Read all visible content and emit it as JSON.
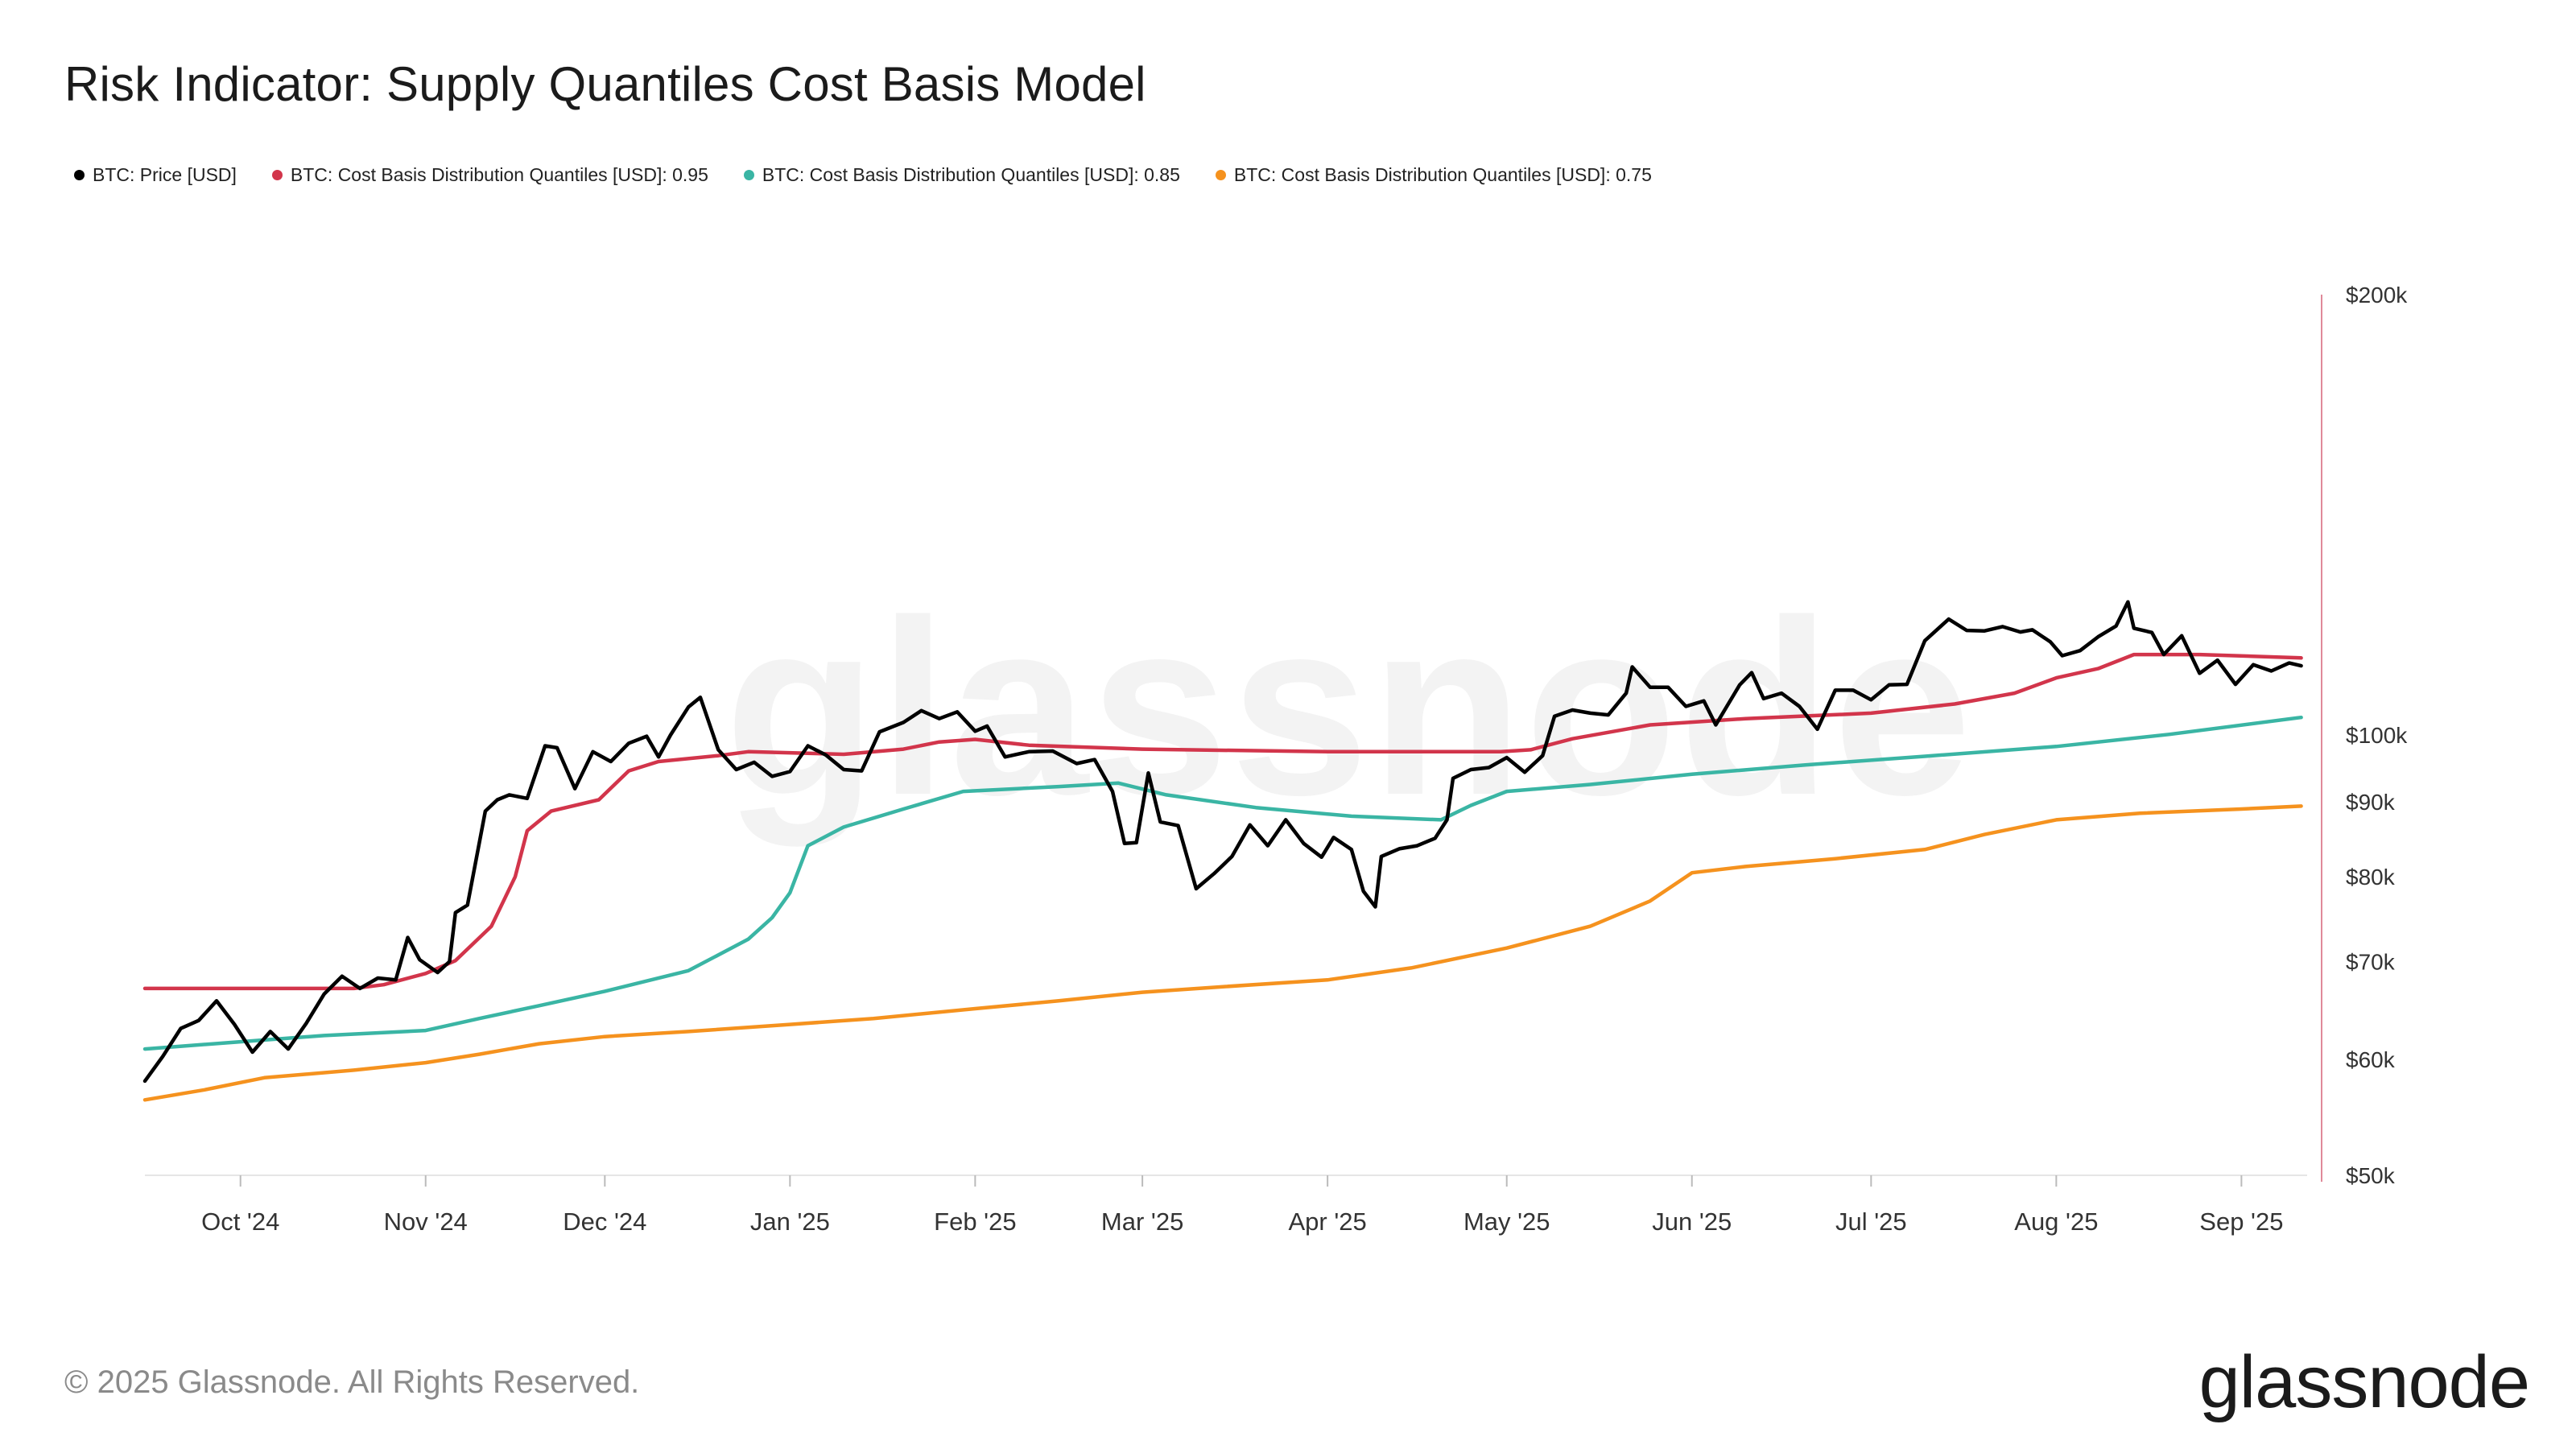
{
  "title": "Risk Indicator: Supply Quantiles Cost Basis Model",
  "footer": "© 2025 Glassnode. All Rights Reserved.",
  "brand": "glassnode",
  "watermark": "glassnode",
  "legend": [
    {
      "label": "BTC: Price [USD]",
      "color": "#000000"
    },
    {
      "label": "BTC: Cost Basis Distribution Quantiles [USD]: 0.95",
      "color": "#d2354b"
    },
    {
      "label": "BTC: Cost Basis Distribution Quantiles [USD]: 0.85",
      "color": "#3ab5a4"
    },
    {
      "label": "BTC: Cost Basis Distribution Quantiles [USD]: 0.75",
      "color": "#f5921e"
    }
  ],
  "chart_data": {
    "type": "line",
    "title": "Risk Indicator: Supply Quantiles Cost Basis Model",
    "y_scale": "log",
    "ylim": [
      50000,
      200000
    ],
    "y_ticks": [
      {
        "value": 200000,
        "label": "$200k"
      },
      {
        "value": 100000,
        "label": "$100k"
      },
      {
        "value": 90000,
        "label": "$90k"
      },
      {
        "value": 80000,
        "label": "$80k"
      },
      {
        "value": 70000,
        "label": "$70k"
      },
      {
        "value": 60000,
        "label": "$60k"
      },
      {
        "value": 50000,
        "label": "$50k"
      }
    ],
    "x_range": [
      "2024-09-15",
      "2025-09-12"
    ],
    "x_ticks": [
      {
        "date": "2024-10-01",
        "label": "Oct '24"
      },
      {
        "date": "2024-11-01",
        "label": "Nov '24"
      },
      {
        "date": "2024-12-01",
        "label": "Dec '24"
      },
      {
        "date": "2025-01-01",
        "label": "Jan '25"
      },
      {
        "date": "2025-02-01",
        "label": "Feb '25"
      },
      {
        "date": "2025-03-01",
        "label": "Mar '25"
      },
      {
        "date": "2025-04-01",
        "label": "Apr '25"
      },
      {
        "date": "2025-05-01",
        "label": "May '25"
      },
      {
        "date": "2025-06-01",
        "label": "Jun '25"
      },
      {
        "date": "2025-07-01",
        "label": "Jul '25"
      },
      {
        "date": "2025-08-01",
        "label": "Aug '25"
      },
      {
        "date": "2025-09-01",
        "label": "Sep '25"
      }
    ],
    "series": [
      {
        "name": "BTC: Price [USD]",
        "color": "#000000",
        "points": [
          [
            "2024-09-15",
            58000
          ],
          [
            "2024-09-18",
            60300
          ],
          [
            "2024-09-21",
            63000
          ],
          [
            "2024-09-24",
            63800
          ],
          [
            "2024-09-27",
            65800
          ],
          [
            "2024-09-30",
            63400
          ],
          [
            "2024-10-03",
            60700
          ],
          [
            "2024-10-06",
            62700
          ],
          [
            "2024-10-09",
            61000
          ],
          [
            "2024-10-12",
            63500
          ],
          [
            "2024-10-15",
            66500
          ],
          [
            "2024-10-18",
            68400
          ],
          [
            "2024-10-21",
            67100
          ],
          [
            "2024-10-24",
            68200
          ],
          [
            "2024-10-27",
            68000
          ],
          [
            "2024-10-29",
            72700
          ],
          [
            "2024-10-31",
            70200
          ],
          [
            "2024-11-03",
            68800
          ],
          [
            "2024-11-05",
            70000
          ],
          [
            "2024-11-06",
            75600
          ],
          [
            "2024-11-08",
            76500
          ],
          [
            "2024-11-11",
            88700
          ],
          [
            "2024-11-13",
            90300
          ],
          [
            "2024-11-15",
            91000
          ],
          [
            "2024-11-18",
            90500
          ],
          [
            "2024-11-21",
            98300
          ],
          [
            "2024-11-23",
            98000
          ],
          [
            "2024-11-26",
            91900
          ],
          [
            "2024-11-29",
            97400
          ],
          [
            "2024-12-02",
            95900
          ],
          [
            "2024-12-05",
            98700
          ],
          [
            "2024-12-08",
            99800
          ],
          [
            "2024-12-10",
            96600
          ],
          [
            "2024-12-12",
            100000
          ],
          [
            "2024-12-15",
            104500
          ],
          [
            "2024-12-17",
            106100
          ],
          [
            "2024-12-20",
            97700
          ],
          [
            "2024-12-23",
            94700
          ],
          [
            "2024-12-26",
            95800
          ],
          [
            "2024-12-29",
            93700
          ],
          [
            "2025-01-01",
            94400
          ],
          [
            "2025-01-04",
            98300
          ],
          [
            "2025-01-07",
            96900
          ],
          [
            "2025-01-10",
            94700
          ],
          [
            "2025-01-13",
            94500
          ],
          [
            "2025-01-16",
            100500
          ],
          [
            "2025-01-20",
            102000
          ],
          [
            "2025-01-23",
            103900
          ],
          [
            "2025-01-26",
            102600
          ],
          [
            "2025-01-29",
            103700
          ],
          [
            "2025-02-01",
            100600
          ],
          [
            "2025-02-03",
            101400
          ],
          [
            "2025-02-06",
            96600
          ],
          [
            "2025-02-10",
            97400
          ],
          [
            "2025-02-14",
            97500
          ],
          [
            "2025-02-18",
            95600
          ],
          [
            "2025-02-21",
            96200
          ],
          [
            "2025-02-24",
            91500
          ],
          [
            "2025-02-26",
            84300
          ],
          [
            "2025-02-28",
            84400
          ],
          [
            "2025-03-02",
            94200
          ],
          [
            "2025-03-04",
            87200
          ],
          [
            "2025-03-07",
            86700
          ],
          [
            "2025-03-10",
            78500
          ],
          [
            "2025-03-13",
            80400
          ],
          [
            "2025-03-16",
            82600
          ],
          [
            "2025-03-19",
            86800
          ],
          [
            "2025-03-22",
            84000
          ],
          [
            "2025-03-25",
            87500
          ],
          [
            "2025-03-28",
            84300
          ],
          [
            "2025-03-31",
            82500
          ],
          [
            "2025-04-02",
            85100
          ],
          [
            "2025-04-05",
            83500
          ],
          [
            "2025-04-07",
            78200
          ],
          [
            "2025-04-09",
            76300
          ],
          [
            "2025-04-10",
            82600
          ],
          [
            "2025-04-13",
            83600
          ],
          [
            "2025-04-16",
            84000
          ],
          [
            "2025-04-19",
            85000
          ],
          [
            "2025-04-21",
            87500
          ],
          [
            "2025-04-22",
            93400
          ],
          [
            "2025-04-25",
            94700
          ],
          [
            "2025-04-28",
            95000
          ],
          [
            "2025-05-01",
            96500
          ],
          [
            "2025-05-04",
            94300
          ],
          [
            "2025-05-07",
            96800
          ],
          [
            "2025-05-09",
            103000
          ],
          [
            "2025-05-12",
            104000
          ],
          [
            "2025-05-15",
            103500
          ],
          [
            "2025-05-18",
            103200
          ],
          [
            "2025-05-21",
            106800
          ],
          [
            "2025-05-22",
            111300
          ],
          [
            "2025-05-25",
            107800
          ],
          [
            "2025-05-28",
            107800
          ],
          [
            "2025-05-31",
            104600
          ],
          [
            "2025-06-03",
            105500
          ],
          [
            "2025-06-05",
            101600
          ],
          [
            "2025-06-09",
            108200
          ],
          [
            "2025-06-11",
            110300
          ],
          [
            "2025-06-13",
            105900
          ],
          [
            "2025-06-16",
            106800
          ],
          [
            "2025-06-19",
            104600
          ],
          [
            "2025-06-22",
            100900
          ],
          [
            "2025-06-25",
            107300
          ],
          [
            "2025-06-28",
            107300
          ],
          [
            "2025-07-01",
            105700
          ],
          [
            "2025-07-04",
            108200
          ],
          [
            "2025-07-07",
            108300
          ],
          [
            "2025-07-10",
            116000
          ],
          [
            "2025-07-13",
            119000
          ],
          [
            "2025-07-14",
            120000
          ],
          [
            "2025-07-17",
            117900
          ],
          [
            "2025-07-20",
            117800
          ],
          [
            "2025-07-23",
            118600
          ],
          [
            "2025-07-26",
            117600
          ],
          [
            "2025-07-28",
            118000
          ],
          [
            "2025-07-31",
            115800
          ],
          [
            "2025-08-02",
            113300
          ],
          [
            "2025-08-05",
            114200
          ],
          [
            "2025-08-08",
            116700
          ],
          [
            "2025-08-11",
            118700
          ],
          [
            "2025-08-13",
            123300
          ],
          [
            "2025-08-14",
            118300
          ],
          [
            "2025-08-17",
            117500
          ],
          [
            "2025-08-19",
            113500
          ],
          [
            "2025-08-22",
            116900
          ],
          [
            "2025-08-25",
            110200
          ],
          [
            "2025-08-28",
            112500
          ],
          [
            "2025-08-31",
            108300
          ],
          [
            "2025-09-03",
            111700
          ],
          [
            "2025-09-06",
            110600
          ],
          [
            "2025-09-09",
            112000
          ],
          [
            "2025-09-11",
            111500
          ]
        ]
      },
      {
        "name": "BTC: Cost Basis Distribution Quantiles [USD]: 0.95",
        "color": "#d2354b",
        "points": [
          [
            "2024-09-15",
            67100
          ],
          [
            "2024-10-20",
            67100
          ],
          [
            "2024-10-25",
            67500
          ],
          [
            "2024-11-01",
            68700
          ],
          [
            "2024-11-06",
            70100
          ],
          [
            "2024-11-12",
            74000
          ],
          [
            "2024-11-16",
            80000
          ],
          [
            "2024-11-18",
            86000
          ],
          [
            "2024-11-22",
            88700
          ],
          [
            "2024-11-30",
            90300
          ],
          [
            "2024-12-05",
            94500
          ],
          [
            "2024-12-10",
            95900
          ],
          [
            "2024-12-20",
            96800
          ],
          [
            "2024-12-25",
            97400
          ],
          [
            "2025-01-10",
            97000
          ],
          [
            "2025-01-20",
            97800
          ],
          [
            "2025-01-26",
            98900
          ],
          [
            "2025-02-01",
            99300
          ],
          [
            "2025-02-10",
            98400
          ],
          [
            "2025-03-01",
            97800
          ],
          [
            "2025-04-01",
            97400
          ],
          [
            "2025-04-30",
            97400
          ],
          [
            "2025-05-05",
            97700
          ],
          [
            "2025-05-12",
            99400
          ],
          [
            "2025-05-25",
            101600
          ],
          [
            "2025-06-10",
            102600
          ],
          [
            "2025-07-01",
            103500
          ],
          [
            "2025-07-15",
            105000
          ],
          [
            "2025-07-25",
            106800
          ],
          [
            "2025-08-01",
            109400
          ],
          [
            "2025-08-08",
            111000
          ],
          [
            "2025-08-14",
            113500
          ],
          [
            "2025-08-25",
            113500
          ],
          [
            "2025-09-11",
            112900
          ]
        ]
      },
      {
        "name": "BTC: Cost Basis Distribution Quantiles [USD]: 0.85",
        "color": "#3ab5a4",
        "points": [
          [
            "2024-09-15",
            61000
          ],
          [
            "2024-10-01",
            61700
          ],
          [
            "2024-10-15",
            62300
          ],
          [
            "2024-11-01",
            62800
          ],
          [
            "2024-11-10",
            64000
          ],
          [
            "2024-11-20",
            65300
          ],
          [
            "2024-12-01",
            66800
          ],
          [
            "2024-12-15",
            69000
          ],
          [
            "2024-12-25",
            72500
          ],
          [
            "2024-12-29",
            75000
          ],
          [
            "2025-01-01",
            78000
          ],
          [
            "2025-01-04",
            84000
          ],
          [
            "2025-01-10",
            86500
          ],
          [
            "2025-01-20",
            89000
          ],
          [
            "2025-01-30",
            91500
          ],
          [
            "2025-02-15",
            92200
          ],
          [
            "2025-02-25",
            92700
          ],
          [
            "2025-03-05",
            91000
          ],
          [
            "2025-03-20",
            89200
          ],
          [
            "2025-04-05",
            88000
          ],
          [
            "2025-04-20",
            87500
          ],
          [
            "2025-04-25",
            89500
          ],
          [
            "2025-05-01",
            91500
          ],
          [
            "2025-05-15",
            92500
          ],
          [
            "2025-06-01",
            94000
          ],
          [
            "2025-06-20",
            95400
          ],
          [
            "2025-07-10",
            96700
          ],
          [
            "2025-08-01",
            98200
          ],
          [
            "2025-08-20",
            100100
          ],
          [
            "2025-09-11",
            102800
          ]
        ]
      },
      {
        "name": "BTC: Cost Basis Distribution Quantiles [USD]: 0.75",
        "color": "#f5921e",
        "points": [
          [
            "2024-09-15",
            56300
          ],
          [
            "2024-09-25",
            57200
          ],
          [
            "2024-10-05",
            58300
          ],
          [
            "2024-10-20",
            59000
          ],
          [
            "2024-11-01",
            59700
          ],
          [
            "2024-11-10",
            60500
          ],
          [
            "2024-11-20",
            61500
          ],
          [
            "2024-12-01",
            62200
          ],
          [
            "2024-12-15",
            62700
          ],
          [
            "2025-01-01",
            63400
          ],
          [
            "2025-01-15",
            64000
          ],
          [
            "2025-02-01",
            65000
          ],
          [
            "2025-02-15",
            65800
          ],
          [
            "2025-03-01",
            66700
          ],
          [
            "2025-03-15",
            67300
          ],
          [
            "2025-04-01",
            68000
          ],
          [
            "2025-04-15",
            69300
          ],
          [
            "2025-05-01",
            71500
          ],
          [
            "2025-05-15",
            74000
          ],
          [
            "2025-05-25",
            77000
          ],
          [
            "2025-06-01",
            80500
          ],
          [
            "2025-06-10",
            81300
          ],
          [
            "2025-06-25",
            82300
          ],
          [
            "2025-07-10",
            83500
          ],
          [
            "2025-07-20",
            85500
          ],
          [
            "2025-08-01",
            87500
          ],
          [
            "2025-08-15",
            88400
          ],
          [
            "2025-09-01",
            89000
          ],
          [
            "2025-09-11",
            89400
          ]
        ]
      }
    ]
  }
}
